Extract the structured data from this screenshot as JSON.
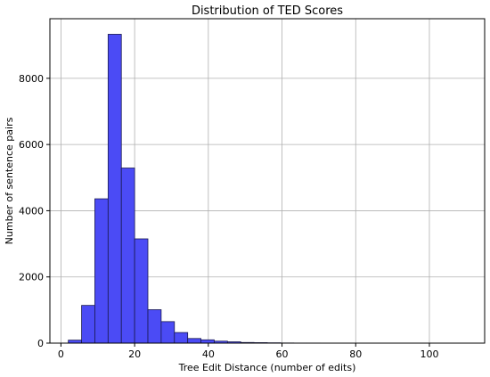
{
  "chart_data": {
    "type": "bar",
    "title": "Distribution of TED Scores",
    "xlabel": "Tree Edit Distance (number of edits)",
    "ylabel": "Number of sentence pairs",
    "xlim": [
      -3,
      115
    ],
    "ylim": [
      0,
      9800
    ],
    "grid": true,
    "legend": "none",
    "bar_color": "#4b4bf5",
    "edge_color": "#1a1a50",
    "x_ticks": [
      0,
      20,
      40,
      60,
      80,
      100
    ],
    "x_tick_labels": [
      "0",
      "20",
      "40",
      "60",
      "80",
      "100"
    ],
    "y_ticks": [
      0,
      2000,
      4000,
      6000,
      8000
    ],
    "y_tick_labels": [
      "0",
      "2000",
      "4000",
      "6000",
      "8000"
    ],
    "bins": [
      {
        "x0": 2.0,
        "x1": 5.6,
        "count": 90
      },
      {
        "x0": 5.6,
        "x1": 9.2,
        "count": 1140
      },
      {
        "x0": 9.2,
        "x1": 12.8,
        "count": 4360
      },
      {
        "x0": 12.8,
        "x1": 16.4,
        "count": 9330
      },
      {
        "x0": 16.4,
        "x1": 20.0,
        "count": 5290
      },
      {
        "x0": 20.0,
        "x1": 23.6,
        "count": 3150
      },
      {
        "x0": 23.6,
        "x1": 27.2,
        "count": 1010
      },
      {
        "x0": 27.2,
        "x1": 30.8,
        "count": 650
      },
      {
        "x0": 30.8,
        "x1": 34.4,
        "count": 320
      },
      {
        "x0": 34.4,
        "x1": 38.0,
        "count": 140
      },
      {
        "x0": 38.0,
        "x1": 41.6,
        "count": 100
      },
      {
        "x0": 41.6,
        "x1": 45.2,
        "count": 60
      },
      {
        "x0": 45.2,
        "x1": 48.8,
        "count": 40
      },
      {
        "x0": 48.8,
        "x1": 52.4,
        "count": 20
      },
      {
        "x0": 52.4,
        "x1": 56.0,
        "count": 15
      },
      {
        "x0": 56.0,
        "x1": 59.6,
        "count": 10
      },
      {
        "x0": 59.6,
        "x1": 63.2,
        "count": 5
      },
      {
        "x0": 63.2,
        "x1": 66.8,
        "count": 3
      },
      {
        "x0": 66.8,
        "x1": 70.4,
        "count": 3
      },
      {
        "x0": 70.4,
        "x1": 74.0,
        "count": 2
      },
      {
        "x0": 74.0,
        "x1": 77.6,
        "count": 2
      },
      {
        "x0": 77.6,
        "x1": 81.2,
        "count": 1
      },
      {
        "x0": 81.2,
        "x1": 84.8,
        "count": 1
      },
      {
        "x0": 84.8,
        "x1": 88.4,
        "count": 1
      },
      {
        "x0": 88.4,
        "x1": 92.0,
        "count": 1
      },
      {
        "x0": 92.0,
        "x1": 95.6,
        "count": 1
      },
      {
        "x0": 95.6,
        "x1": 99.2,
        "count": 1
      },
      {
        "x0": 99.2,
        "x1": 102.8,
        "count": 1
      },
      {
        "x0": 102.8,
        "x1": 106.4,
        "count": 1
      },
      {
        "x0": 106.4,
        "x1": 110.0,
        "count": 1
      }
    ]
  }
}
